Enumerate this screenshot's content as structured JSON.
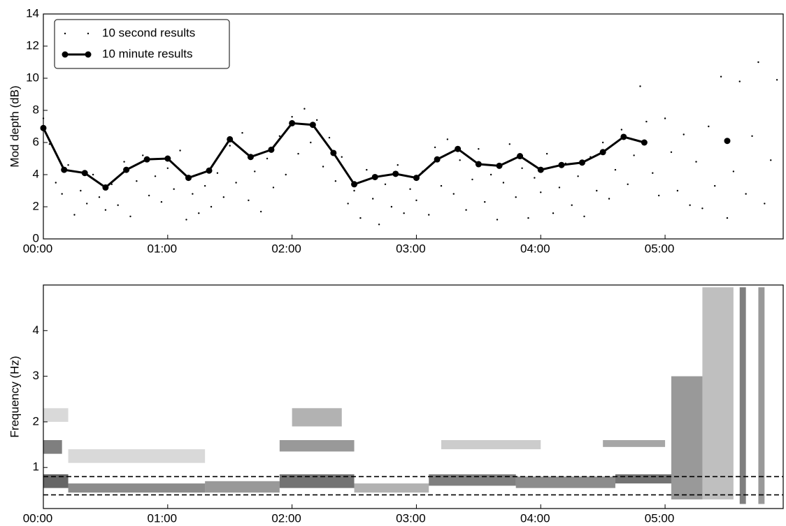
{
  "chart_data": [
    {
      "type": "line",
      "ylabel": "Mod depth (dB)",
      "xlim": [
        0,
        5.95
      ],
      "ylim": [
        0,
        14
      ],
      "xticks": [
        {
          "value": 0,
          "label": "00:00"
        },
        {
          "value": 1,
          "label": "01:00"
        },
        {
          "value": 2,
          "label": "02:00"
        },
        {
          "value": 3,
          "label": "03:00"
        },
        {
          "value": 4,
          "label": "04:00"
        },
        {
          "value": 5,
          "label": "05:00"
        }
      ],
      "yticks": [
        0,
        2,
        4,
        6,
        8,
        10,
        12,
        14
      ],
      "legend": "upper left",
      "series": [
        {
          "name": "10 second results",
          "style": "scatter",
          "color": "#000000",
          "x": [
            0,
            0.05,
            0.1,
            0.15,
            0.2,
            0.25,
            0.3,
            0.35,
            0.4,
            0.45,
            0.5,
            0.55,
            0.6,
            0.65,
            0.7,
            0.75,
            0.8,
            0.85,
            0.9,
            0.95,
            1,
            1.05,
            1.1,
            1.15,
            1.2,
            1.25,
            1.3,
            1.35,
            1.4,
            1.45,
            1.5,
            1.55,
            1.6,
            1.65,
            1.7,
            1.75,
            1.8,
            1.85,
            1.9,
            1.95,
            2,
            2.05,
            2.1,
            2.15,
            2.2,
            2.25,
            2.3,
            2.35,
            2.4,
            2.45,
            2.5,
            2.55,
            2.6,
            2.65,
            2.7,
            2.75,
            2.8,
            2.85,
            2.9,
            2.95,
            3,
            3.05,
            3.1,
            3.15,
            3.2,
            3.25,
            3.3,
            3.35,
            3.4,
            3.45,
            3.5,
            3.55,
            3.6,
            3.65,
            3.7,
            3.75,
            3.8,
            3.85,
            3.9,
            3.95,
            4,
            4.05,
            4.1,
            4.15,
            4.2,
            4.25,
            4.3,
            4.35,
            4.4,
            4.45,
            4.5,
            4.55,
            4.6,
            4.65,
            4.7,
            4.75,
            4.8,
            4.85,
            4.9,
            4.95,
            5,
            5.05,
            5.1,
            5.15,
            5.2,
            5.25,
            5.3,
            5.35,
            5.4,
            5.45,
            5.5,
            5.55,
            5.6,
            5.65,
            5.7,
            5.75,
            5.8,
            5.85,
            5.9
          ],
          "values": [
            7.5,
            5.9,
            3.5,
            2.8,
            4.6,
            1.5,
            3.0,
            2.2,
            4.0,
            2.6,
            1.8,
            3.4,
            2.1,
            4.8,
            1.4,
            3.6,
            5.2,
            2.7,
            3.9,
            2.3,
            4.4,
            3.1,
            5.5,
            1.2,
            2.8,
            1.6,
            3.3,
            2.0,
            4.1,
            2.6,
            5.8,
            3.5,
            6.6,
            2.4,
            4.2,
            1.7,
            5.0,
            3.2,
            6.4,
            4.0,
            7.6,
            5.3,
            8.1,
            6.0,
            7.4,
            4.5,
            6.3,
            3.6,
            5.1,
            2.2,
            3.0,
            1.3,
            4.3,
            2.5,
            0.9,
            3.4,
            2.0,
            4.6,
            1.6,
            3.1,
            2.4,
            4.2,
            1.5,
            5.7,
            3.3,
            6.2,
            2.8,
            4.9,
            1.8,
            3.7,
            5.6,
            2.3,
            4.0,
            1.2,
            3.5,
            5.9,
            2.6,
            4.4,
            1.3,
            3.8,
            2.9,
            5.3,
            1.6,
            3.2,
            4.7,
            2.1,
            3.9,
            1.4,
            5.1,
            3.0,
            6.0,
            2.5,
            4.3,
            6.8,
            3.4,
            5.2,
            9.5,
            7.3,
            4.1,
            2.7,
            7.5,
            5.4,
            3.0,
            6.5,
            2.1,
            4.8,
            1.9,
            7.0,
            3.3,
            10.1,
            1.3,
            4.2,
            9.8,
            2.8,
            6.4,
            11.0,
            2.2,
            4.9,
            9.9
          ]
        },
        {
          "name": "10 minute results",
          "style": "line",
          "color": "#000000",
          "x": [
            0,
            0.167,
            0.333,
            0.5,
            0.667,
            0.833,
            1,
            1.167,
            1.333,
            1.5,
            1.667,
            1.833,
            2,
            2.167,
            2.333,
            2.5,
            2.667,
            2.833,
            3,
            3.167,
            3.333,
            3.5,
            3.667,
            3.833,
            4,
            4.167,
            4.333,
            4.5,
            4.667,
            4.833,
            5,
            5.167,
            5.333,
            5.5
          ],
          "values": [
            6.9,
            4.3,
            4.1,
            3.2,
            4.3,
            4.95,
            5.0,
            3.8,
            4.25,
            6.2,
            5.1,
            5.55,
            7.2,
            7.1,
            5.35,
            3.4,
            3.85,
            4.05,
            3.8,
            4.95,
            5.6,
            4.65,
            4.55,
            5.15,
            4.3,
            4.6,
            4.75,
            5.4,
            6.35,
            6.0,
            null,
            null,
            null,
            6.1
          ]
        }
      ]
    },
    {
      "type": "spectrogram",
      "ylabel": "Frequency (Hz)",
      "xlim": [
        0,
        5.95
      ],
      "ylim": [
        0.1,
        5.0
      ],
      "xticks": [
        {
          "value": 0,
          "label": "00:00"
        },
        {
          "value": 1,
          "label": "01:00"
        },
        {
          "value": 2,
          "label": "02:00"
        },
        {
          "value": 3,
          "label": "03:00"
        },
        {
          "value": 4,
          "label": "04:00"
        },
        {
          "value": 5,
          "label": "05:00"
        }
      ],
      "yticks": [
        1,
        2,
        3,
        4
      ],
      "color": "#000000",
      "hlines": [
        0.4,
        0.8
      ],
      "segments": [
        [
          0,
          0.2,
          0.55,
          0.85,
          0.6
        ],
        [
          0.2,
          1.3,
          0.45,
          0.65,
          0.45
        ],
        [
          1.3,
          1.9,
          0.45,
          0.7,
          0.4
        ],
        [
          1.9,
          2.5,
          0.55,
          0.85,
          0.55
        ],
        [
          2.5,
          3.1,
          0.45,
          0.65,
          0.3
        ],
        [
          3.1,
          3.8,
          0.6,
          0.85,
          0.5
        ],
        [
          3.8,
          4.6,
          0.55,
          0.8,
          0.45
        ],
        [
          4.6,
          5.05,
          0.65,
          0.85,
          0.55
        ],
        [
          0,
          0.15,
          1.3,
          1.6,
          0.5
        ],
        [
          0.2,
          1.3,
          1.1,
          1.4,
          0.15
        ],
        [
          1.9,
          2.5,
          1.35,
          1.6,
          0.4
        ],
        [
          2,
          2.4,
          1.9,
          2.3,
          0.3
        ],
        [
          3.2,
          4,
          1.4,
          1.6,
          0.2
        ],
        [
          4.5,
          5,
          1.45,
          1.6,
          0.35
        ],
        [
          0,
          0.2,
          2,
          2.3,
          0.15
        ],
        [
          5.05,
          5.3,
          0.3,
          3,
          0.4
        ],
        [
          5.3,
          5.55,
          0.3,
          4.95,
          0.25
        ],
        [
          5.6,
          5.65,
          0.2,
          4.95,
          0.5
        ],
        [
          5.75,
          5.8,
          0.2,
          4.95,
          0.4
        ]
      ]
    }
  ]
}
